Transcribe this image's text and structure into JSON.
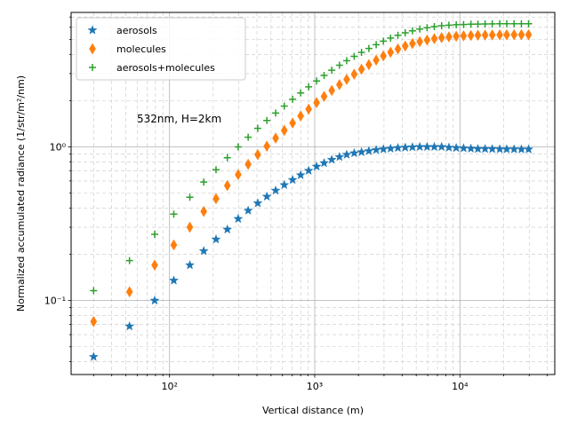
{
  "chart_data": {
    "type": "scatter",
    "xscale": "log",
    "yscale": "log",
    "xlabel": "Vertical distance (m)",
    "ylabel": "Normalized accumulated radiance (1/str/m²/nm)",
    "xlim": [
      21,
      45000
    ],
    "ylim": [
      0.033,
      7.5
    ],
    "grid": "both (major solid, minor dashed)",
    "legend_position": "top-left",
    "x_tick_labels": {
      "major": [
        "10²",
        "10³",
        "10⁴"
      ]
    },
    "y_tick_labels": {
      "major": [
        "10⁻¹",
        "10⁰"
      ]
    },
    "annotation": "532nm, H=2km",
    "x": [
      30,
      53,
      79,
      107,
      138,
      172,
      209,
      250,
      297,
      348,
      405,
      468,
      538,
      617,
      704,
      800,
      908,
      1030,
      1160,
      1310,
      1480,
      1660,
      1870,
      2100,
      2360,
      2650,
      2970,
      3330,
      3740,
      4200,
      4710,
      5290,
      5940,
      6660,
      7480,
      8400,
      9430,
      10600,
      11900,
      13300,
      14900,
      16700,
      18800,
      21000,
      23600,
      26500,
      29700
    ],
    "series": [
      {
        "name": "aerosols",
        "marker": "star",
        "color": "#1f77b4",
        "values": [
          0.043,
          0.068,
          0.1,
          0.135,
          0.17,
          0.21,
          0.25,
          0.29,
          0.34,
          0.385,
          0.43,
          0.475,
          0.52,
          0.565,
          0.61,
          0.655,
          0.7,
          0.745,
          0.785,
          0.825,
          0.86,
          0.89,
          0.91,
          0.925,
          0.94,
          0.955,
          0.965,
          0.975,
          0.985,
          0.99,
          0.995,
          1.0,
          1.0,
          1.0,
          1.0,
          0.99,
          0.985,
          0.98,
          0.975,
          0.97,
          0.97,
          0.968,
          0.966,
          0.965,
          0.965,
          0.964,
          0.964
        ]
      },
      {
        "name": "molecules",
        "marker": "thin_diamond",
        "color": "#ff7f0e",
        "values": [
          0.073,
          0.114,
          0.17,
          0.23,
          0.3,
          0.38,
          0.46,
          0.56,
          0.66,
          0.77,
          0.89,
          1.01,
          1.14,
          1.28,
          1.43,
          1.59,
          1.76,
          1.94,
          2.13,
          2.33,
          2.54,
          2.75,
          2.97,
          3.2,
          3.43,
          3.67,
          3.91,
          4.13,
          4.34,
          4.53,
          4.7,
          4.84,
          4.96,
          5.06,
          5.14,
          5.2,
          5.25,
          5.28,
          5.31,
          5.33,
          5.34,
          5.35,
          5.36,
          5.36,
          5.37,
          5.37,
          5.37
        ]
      },
      {
        "name": "aerosols+molecules",
        "marker": "plus",
        "color": "#2ca02c",
        "values": [
          0.116,
          0.182,
          0.27,
          0.365,
          0.47,
          0.59,
          0.71,
          0.85,
          1.0,
          1.155,
          1.32,
          1.485,
          1.66,
          1.845,
          2.04,
          2.245,
          2.46,
          2.685,
          2.915,
          3.155,
          3.4,
          3.64,
          3.88,
          4.125,
          4.37,
          4.625,
          4.875,
          5.105,
          5.325,
          5.52,
          5.695,
          5.84,
          5.96,
          6.06,
          6.14,
          6.19,
          6.235,
          6.26,
          6.285,
          6.3,
          6.31,
          6.318,
          6.326,
          6.325,
          6.335,
          6.334,
          6.334
        ]
      }
    ]
  }
}
